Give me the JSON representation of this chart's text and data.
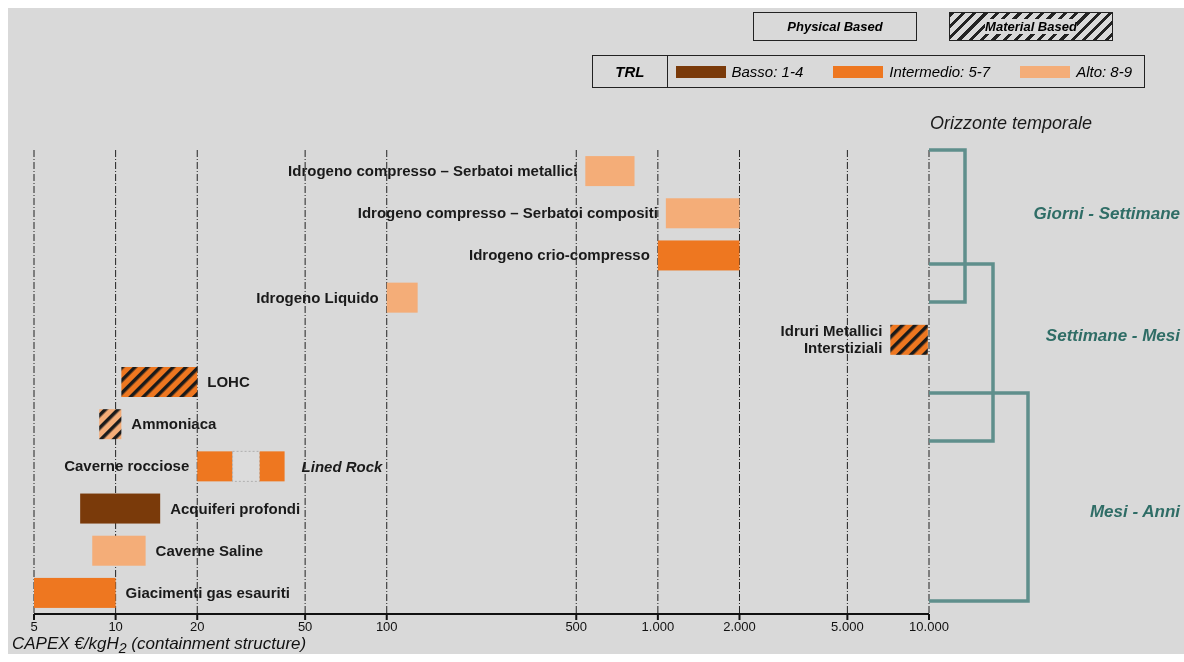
{
  "chart_data": {
    "type": "bar",
    "orientation": "horizontal",
    "log": "x",
    "xlabel": "CAPEX €/kgH$_{2}$ (containment structure)",
    "legend_title": "TRL",
    "legend": "top right",
    "grid": "x",
    "categories": [
      "Idrogeno compresso – Serbatoi metallici",
      "Idrogeno compresso – Serbatoi compositi",
      "Idrogeno crio-compresso",
      "Idrogeno Liquido",
      "Idruri Metallici\nInterstiziali",
      "LOHC",
      "Ammoniaca",
      "Caverne rocciose",
      "Acquiferi profondi",
      "Caverne Saline",
      "Giacimenti gas esauriti"
    ],
    "xlim": [
      5,
      10000
    ],
    "xticks": [
      5,
      10,
      20,
      50,
      100,
      500,
      {
        "value": 1000,
        "label": "1.000"
      },
      {
        "value": 2000,
        "label": "2.000"
      },
      {
        "value": 5000,
        "label": "5.000"
      },
      {
        "value": 10000,
        "label": "10.000"
      }
    ],
    "series": [
      {
        "name": "Basso: 1-4",
        "color": "#7a3a0a",
        "values": [
          null,
          null,
          null,
          null,
          null,
          null,
          null,
          null,
          7.2,
          null,
          null
        ],
        "base": [
          null,
          null,
          null,
          null,
          null,
          null,
          null,
          null,
          7.4,
          null,
          null
        ]
      },
      {
        "name": "Intermedio: 5-7",
        "color": "#ee7720",
        "values": [
          null,
          null,
          1000,
          null,
          null,
          null,
          null,
          7,
          null,
          null,
          5
        ],
        "base": [
          null,
          null,
          1000,
          null,
          null,
          null,
          null,
          20,
          null,
          null,
          5
        ]
      },
      {
        "name": "Alto: 8-9",
        "color": "#f4ad78",
        "values": [
          280,
          930,
          null,
          30,
          null,
          null,
          null,
          null,
          null,
          4.7,
          null
        ],
        "base": [
          540,
          1070,
          null,
          100,
          null,
          null,
          null,
          null,
          null,
          8.2,
          null
        ]
      },
      {
        "name": "Material Based",
        "colors": [
          null,
          null,
          null,
          null,
          "#ee7720",
          "#ee7720",
          "#f4ad78",
          null,
          null,
          null,
          null
        ],
        "values": [
          null,
          null,
          null,
          null,
          2700,
          9.5,
          1.8,
          null,
          null,
          null,
          null
        ],
        "base": [
          null,
          null,
          null,
          null,
          7200,
          10.5,
          8.7,
          null,
          null,
          null,
          null
        ]
      },
      {
        "color": "#dcdcdc",
        "values": [
          null,
          null,
          null,
          null,
          null,
          null,
          null,
          7,
          null,
          null,
          null
        ],
        "base": [
          null,
          null,
          null,
          null,
          null,
          null,
          null,
          27,
          null,
          null,
          null
        ]
      },
      {
        "color": "#ee7720",
        "values": [
          null,
          null,
          null,
          null,
          null,
          null,
          null,
          8,
          null,
          null,
          null
        ],
        "base": [
          null,
          null,
          null,
          null,
          null,
          null,
          null,
          34,
          null,
          null,
          null
        ]
      }
    ],
    "annotations": [
      "Physical Based",
      "Lined Rock",
      "Orizzonte temporale",
      "Giorni - Settimane",
      "Settimane - Mesi",
      "Mesi - Anni"
    ]
  }
}
